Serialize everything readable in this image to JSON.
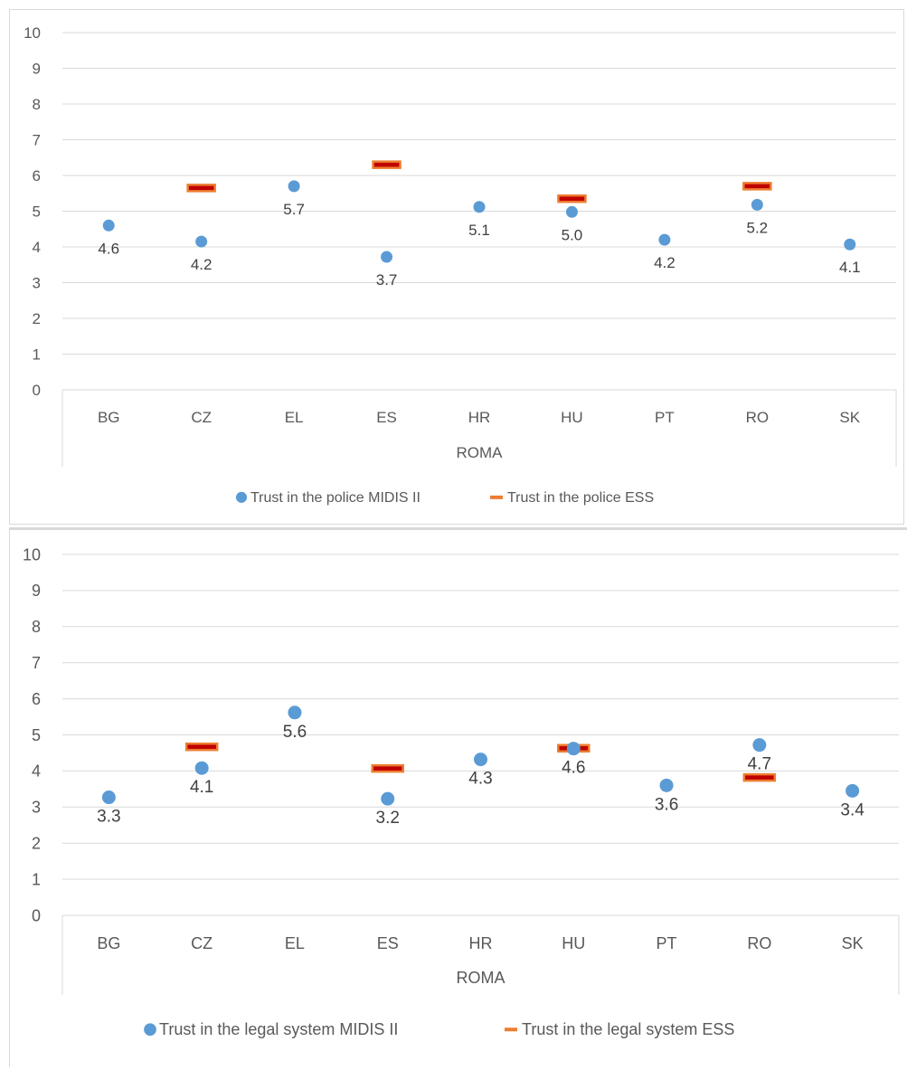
{
  "colors": {
    "midis": "#5b9bd5",
    "ess_fill": "#c00000",
    "ess_border": "#ed7d31",
    "grid": "#d9d9d9",
    "text": "#595959",
    "label": "#404040"
  },
  "chart_data": [
    {
      "type": "scatter",
      "categories": [
        "BG",
        "CZ",
        "EL",
        "ES",
        "HR",
        "HU",
        "PT",
        "RO",
        "SK"
      ],
      "group_label": "ROMA",
      "ylim": [
        0,
        10
      ],
      "yticks": [
        "0",
        "1",
        "2",
        "3",
        "4",
        "5",
        "6",
        "7",
        "8",
        "9",
        "10"
      ],
      "grid": true,
      "legend_position": "bottom",
      "series": [
        {
          "name": "Trust in the police MIDIS II",
          "marker": "circle",
          "values": [
            4.6,
            4.15,
            5.7,
            3.72,
            5.12,
            4.98,
            4.2,
            5.18,
            4.07
          ],
          "labels": [
            "4.6",
            "4.2",
            "5.7",
            "3.7",
            "5.1",
            "5.0",
            "4.2",
            "5.2",
            "4.1"
          ],
          "label_pos": [
            "below",
            "below",
            "below",
            "below",
            "above",
            "above",
            "below",
            "above",
            "below"
          ]
        },
        {
          "name": "Trust in the police ESS",
          "marker": "dash",
          "values": [
            null,
            5.65,
            null,
            6.3,
            null,
            5.35,
            null,
            5.7,
            null
          ]
        }
      ]
    },
    {
      "type": "scatter",
      "categories": [
        "BG",
        "CZ",
        "EL",
        "ES",
        "HR",
        "HU",
        "PT",
        "RO",
        "SK"
      ],
      "group_label": "ROMA",
      "ylim": [
        0,
        10
      ],
      "yticks": [
        "0",
        "1",
        "2",
        "3",
        "4",
        "5",
        "6",
        "7",
        "8",
        "9",
        "10"
      ],
      "grid": true,
      "legend_position": "bottom",
      "series": [
        {
          "name": "Trust in the legal system MIDIS II",
          "marker": "circle",
          "values": [
            3.27,
            4.08,
            5.62,
            3.23,
            4.32,
            4.62,
            3.6,
            4.72,
            3.45
          ],
          "labels": [
            "3.3",
            "4.1",
            "5.6",
            "3.2",
            "4.3",
            "4.6",
            "3.6",
            "4.7",
            "3.4"
          ],
          "label_pos": [
            "below",
            "below",
            "below",
            "below",
            "below",
            "below",
            "below",
            "below",
            "below"
          ]
        },
        {
          "name": "Trust in the legal system ESS",
          "marker": "dash",
          "values": [
            null,
            4.67,
            null,
            4.07,
            null,
            4.63,
            null,
            3.82,
            null
          ]
        }
      ]
    }
  ]
}
